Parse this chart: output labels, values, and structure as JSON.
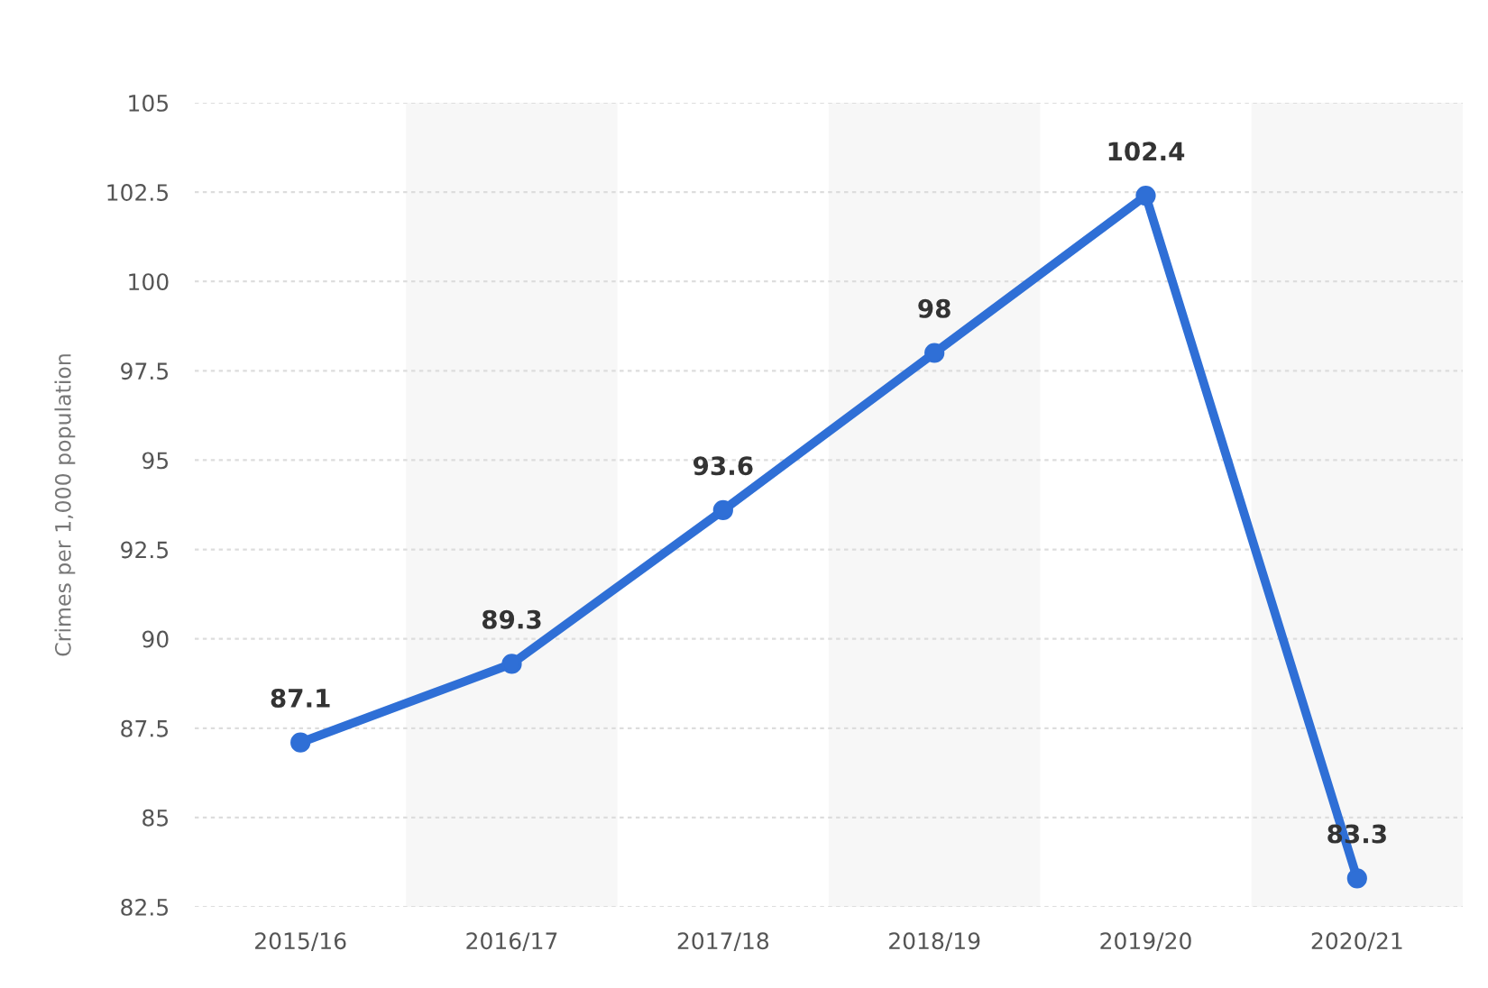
{
  "chart_data": {
    "type": "line",
    "ylabel": "Crimes per 1,000 population",
    "categories": [
      "2015/16",
      "2016/17",
      "2017/18",
      "2018/19",
      "2019/20",
      "2020/21"
    ],
    "series": [
      {
        "color": "#2f6fd6",
        "values": [
          87.1,
          89.3,
          93.6,
          98,
          102.4,
          83.3
        ]
      }
    ],
    "ylim": [
      82.5,
      105
    ],
    "yticks": [
      82.5,
      85,
      87.5,
      90,
      92.5,
      95,
      97.5,
      100,
      102.5,
      105
    ],
    "grid": "y",
    "marker": "circle",
    "line_style": "solid",
    "data_labels": true,
    "legend": false,
    "bands": [
      {
        "axis": "x",
        "from": "2016/17",
        "to": "2016/17",
        "color": "#f7f7f7"
      },
      {
        "axis": "x",
        "from": "2018/19",
        "to": "2018/19",
        "color": "#f7f7f7"
      },
      {
        "axis": "x",
        "from": "2020/21",
        "to": "2020/21",
        "color": "#f7f7f7"
      }
    ]
  }
}
